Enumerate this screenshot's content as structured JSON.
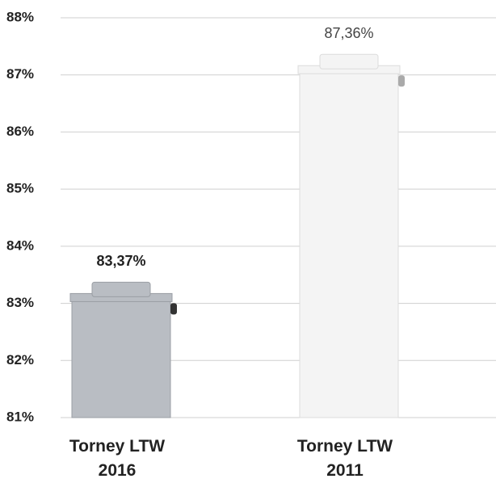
{
  "chart_data": {
    "type": "bar",
    "categories": [
      "Torney LTW 2016",
      "Torney LTW 2011"
    ],
    "values": [
      83.37,
      87.36
    ],
    "value_labels": [
      "83,37%",
      "87,36%"
    ],
    "colors": [
      "#b9bdc3",
      "#f4f4f4"
    ],
    "ylim": [
      81,
      88
    ],
    "yticks": [
      {
        "value": 81,
        "label": "81%"
      },
      {
        "value": 82,
        "label": "82%"
      },
      {
        "value": 83,
        "label": "83%"
      },
      {
        "value": 84,
        "label": "84%"
      },
      {
        "value": 85,
        "label": "85%"
      },
      {
        "value": 86,
        "label": "86%"
      },
      {
        "value": 87,
        "label": "87%"
      },
      {
        "value": 88,
        "label": "88%"
      }
    ],
    "grid": true
  }
}
